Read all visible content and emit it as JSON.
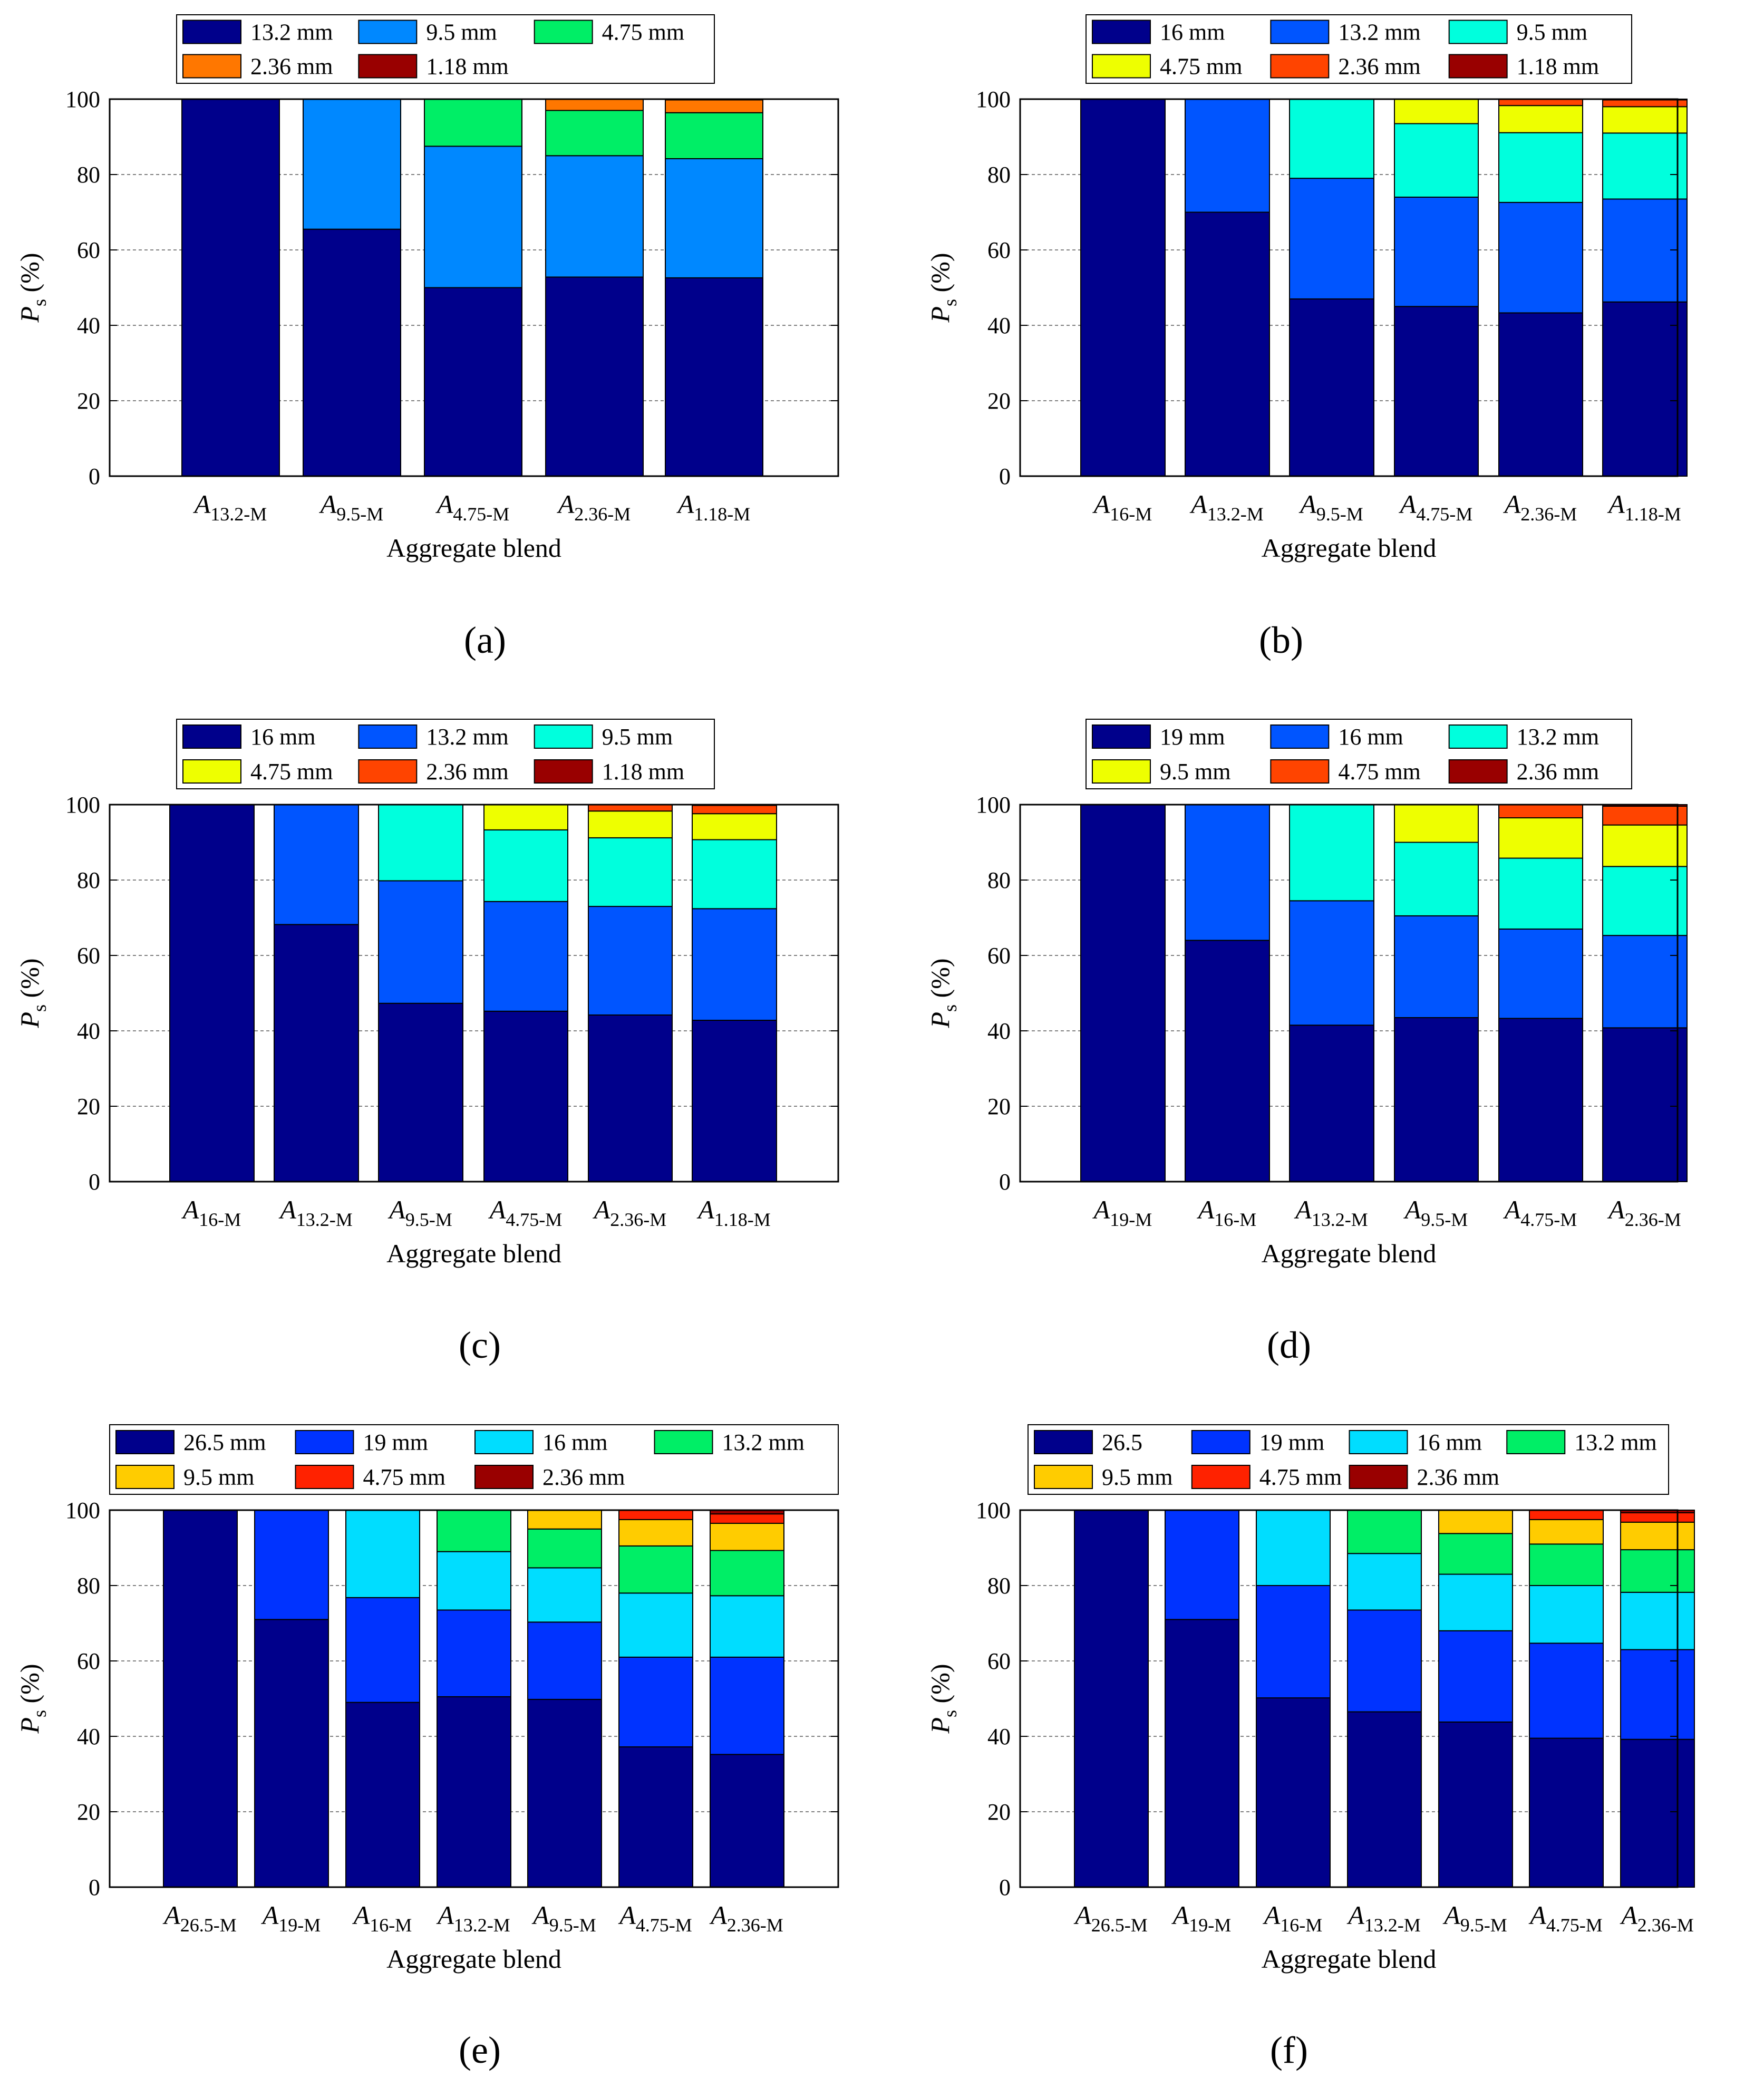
{
  "figure": {
    "ylabel_symbol": "P",
    "ylabel_subscript": "s",
    "ylabel_unit": "(%)"
  },
  "chart_data": [
    {
      "type": "bar",
      "stacked": true,
      "panel_label": "(a)",
      "xlabel": "Aggregate blend",
      "ylabel": "Ps (%)",
      "ylim": [
        0,
        100
      ],
      "yticks": [
        0,
        20,
        40,
        60,
        80,
        100
      ],
      "grid": "horizontal dashed",
      "legend_position": "top",
      "categories": [
        {
          "main": "A",
          "sub": "13.2-M"
        },
        {
          "main": "A",
          "sub": "9.5-M"
        },
        {
          "main": "A",
          "sub": "4.75-M"
        },
        {
          "main": "A",
          "sub": "2.36-M"
        },
        {
          "main": "A",
          "sub": "1.18-M"
        }
      ],
      "series": [
        {
          "name": "13.2 mm",
          "color": "#00008B",
          "values": [
            100,
            65.5,
            50,
            52.8,
            52.6
          ]
        },
        {
          "name": "9.5 mm",
          "color": "#0088FF",
          "values": [
            0,
            34.5,
            37.5,
            32.2,
            31.6
          ]
        },
        {
          "name": "4.75 mm",
          "color": "#00EE66",
          "values": [
            0,
            0,
            12.5,
            12,
            12.2
          ]
        },
        {
          "name": "2.36 mm",
          "color": "#FF7700",
          "values": [
            0,
            0,
            0,
            3,
            3.4
          ]
        },
        {
          "name": "1.18 mm",
          "color": "#990000",
          "values": [
            0,
            0,
            0,
            0,
            0.2
          ]
        }
      ]
    },
    {
      "type": "bar",
      "stacked": true,
      "panel_label": "(b)",
      "xlabel": "Aggregate blend",
      "ylabel": "Ps (%)",
      "ylim": [
        0,
        100
      ],
      "yticks": [
        0,
        20,
        40,
        60,
        80,
        100
      ],
      "grid": "horizontal dashed",
      "legend_position": "top",
      "categories": [
        {
          "main": "A",
          "sub": "16-M"
        },
        {
          "main": "A",
          "sub": "13.2-M"
        },
        {
          "main": "A",
          "sub": "9.5-M"
        },
        {
          "main": "A",
          "sub": "4.75-M"
        },
        {
          "main": "A",
          "sub": "2.36-M"
        },
        {
          "main": "A",
          "sub": "1.18-M"
        }
      ],
      "series": [
        {
          "name": "16 mm",
          "color": "#00008B",
          "values": [
            100,
            70,
            47,
            45,
            43.3,
            46.2
          ]
        },
        {
          "name": "13.2 mm",
          "color": "#0055FF",
          "values": [
            0,
            30,
            32,
            29,
            29.3,
            27.3
          ]
        },
        {
          "name": "9.5 mm",
          "color": "#00FFDD",
          "values": [
            0,
            0,
            21,
            19.5,
            18.5,
            17.5
          ]
        },
        {
          "name": "4.75 mm",
          "color": "#EEFF00",
          "values": [
            0,
            0,
            0,
            6.5,
            7.2,
            7
          ]
        },
        {
          "name": "2.36 mm",
          "color": "#FF4400",
          "values": [
            0,
            0,
            0,
            0,
            1.7,
            1.8
          ]
        },
        {
          "name": "1.18 mm",
          "color": "#990000",
          "values": [
            0,
            0,
            0,
            0,
            0,
            0.2
          ]
        }
      ]
    },
    {
      "type": "bar",
      "stacked": true,
      "panel_label": "(c)",
      "xlabel": "Aggregate blend",
      "ylabel": "Ps (%)",
      "ylim": [
        0,
        100
      ],
      "yticks": [
        0,
        20,
        40,
        60,
        80,
        100
      ],
      "grid": "horizontal dashed",
      "legend_position": "top",
      "categories": [
        {
          "main": "A",
          "sub": "16-M"
        },
        {
          "main": "A",
          "sub": "13.2-M"
        },
        {
          "main": "A",
          "sub": "9.5-M"
        },
        {
          "main": "A",
          "sub": "4.75-M"
        },
        {
          "main": "A",
          "sub": "2.36-M"
        },
        {
          "main": "A",
          "sub": "1.18-M"
        }
      ],
      "series": [
        {
          "name": "16 mm",
          "color": "#00008B",
          "values": [
            100,
            68.2,
            47.3,
            45.2,
            44.2,
            42.8
          ]
        },
        {
          "name": "13.2 mm",
          "color": "#0055FF",
          "values": [
            0,
            31.8,
            32.5,
            29.1,
            28.8,
            29.6
          ]
        },
        {
          "name": "9.5 mm",
          "color": "#00FFDD",
          "values": [
            0,
            0,
            20.2,
            19,
            18.2,
            18.3
          ]
        },
        {
          "name": "4.75 mm",
          "color": "#EEFF00",
          "values": [
            0,
            0,
            0,
            6.7,
            7.1,
            6.9
          ]
        },
        {
          "name": "2.36 mm",
          "color": "#FF4400",
          "values": [
            0,
            0,
            0,
            0,
            1.7,
            2.2
          ]
        },
        {
          "name": "1.18 mm",
          "color": "#990000",
          "values": [
            0,
            0,
            0,
            0,
            0,
            0.2
          ]
        }
      ]
    },
    {
      "type": "bar",
      "stacked": true,
      "panel_label": "(d)",
      "xlabel": "Aggregate blend",
      "ylabel": "Ps (%)",
      "ylim": [
        0,
        100
      ],
      "yticks": [
        0,
        20,
        40,
        60,
        80,
        100
      ],
      "grid": "horizontal dashed",
      "legend_position": "top",
      "categories": [
        {
          "main": "A",
          "sub": "19-M"
        },
        {
          "main": "A",
          "sub": "16-M"
        },
        {
          "main": "A",
          "sub": "13.2-M"
        },
        {
          "main": "A",
          "sub": "9.5-M"
        },
        {
          "main": "A",
          "sub": "4.75-M"
        },
        {
          "main": "A",
          "sub": "2.36-M"
        }
      ],
      "series": [
        {
          "name": "19 mm",
          "color": "#00008B",
          "values": [
            100,
            64,
            41.5,
            43.5,
            43.3,
            40.8
          ]
        },
        {
          "name": "16 mm",
          "color": "#0055FF",
          "values": [
            0,
            36,
            33,
            27,
            23.7,
            24.5
          ]
        },
        {
          "name": "13.2 mm",
          "color": "#00FFDD",
          "values": [
            0,
            0,
            25.5,
            19.5,
            18.8,
            18.3
          ]
        },
        {
          "name": "9.5 mm",
          "color": "#EEFF00",
          "values": [
            0,
            0,
            0,
            10,
            10.7,
            11
          ]
        },
        {
          "name": "4.75 mm",
          "color": "#FF4400",
          "values": [
            0,
            0,
            0,
            0,
            3.5,
            5
          ]
        },
        {
          "name": "2.36 mm",
          "color": "#990000",
          "values": [
            0,
            0,
            0,
            0,
            0,
            0.4
          ]
        }
      ]
    },
    {
      "type": "bar",
      "stacked": true,
      "panel_label": "(e)",
      "xlabel": "Aggregate blend",
      "ylabel": "Ps (%)",
      "ylim": [
        0,
        100
      ],
      "yticks": [
        0,
        20,
        40,
        60,
        80,
        100
      ],
      "grid": "horizontal dashed",
      "legend_position": "top",
      "categories": [
        {
          "main": "A",
          "sub": "26.5-M"
        },
        {
          "main": "A",
          "sub": "19-M"
        },
        {
          "main": "A",
          "sub": "16-M"
        },
        {
          "main": "A",
          "sub": "13.2-M"
        },
        {
          "main": "A",
          "sub": "9.5-M"
        },
        {
          "main": "A",
          "sub": "4.75-M"
        },
        {
          "main": "A",
          "sub": "2.36-M"
        }
      ],
      "series": [
        {
          "name": "26.5 mm",
          "color": "#00008B",
          "values": [
            100,
            71,
            49,
            50.5,
            49.8,
            37.2,
            35.2
          ]
        },
        {
          "name": "19 mm",
          "color": "#0033FF",
          "values": [
            0,
            29,
            27.8,
            23,
            20.5,
            23.8,
            25.8
          ]
        },
        {
          "name": "16 mm",
          "color": "#00DDFF",
          "values": [
            0,
            0,
            23.2,
            15.5,
            14.4,
            17,
            16.3
          ]
        },
        {
          "name": "13.2 mm",
          "color": "#00EE66",
          "values": [
            0,
            0,
            0,
            11,
            10.3,
            12.5,
            12
          ]
        },
        {
          "name": "9.5 mm",
          "color": "#FFCC00",
          "values": [
            0,
            0,
            0,
            0,
            5,
            7,
            7.2
          ]
        },
        {
          "name": "4.75 mm",
          "color": "#FF2200",
          "values": [
            0,
            0,
            0,
            0,
            0,
            2.5,
            2.5
          ]
        },
        {
          "name": "2.36 mm",
          "color": "#990000",
          "values": [
            0,
            0,
            0,
            0,
            0,
            0,
            1
          ]
        }
      ]
    },
    {
      "type": "bar",
      "stacked": true,
      "panel_label": "(f)",
      "xlabel": "Aggregate blend",
      "ylabel": "Ps (%)",
      "ylim": [
        0,
        100
      ],
      "yticks": [
        0,
        20,
        40,
        60,
        80,
        100
      ],
      "grid": "horizontal dashed",
      "legend_position": "top",
      "categories": [
        {
          "main": "A",
          "sub": "26.5-M"
        },
        {
          "main": "A",
          "sub": "19-M"
        },
        {
          "main": "A",
          "sub": "16-M"
        },
        {
          "main": "A",
          "sub": "13.2-M"
        },
        {
          "main": "A",
          "sub": "9.5-M"
        },
        {
          "main": "A",
          "sub": "4.75-M"
        },
        {
          "main": "A",
          "sub": "2.36-M"
        }
      ],
      "series": [
        {
          "name": "26.5",
          "color": "#00008B",
          "values": [
            100,
            71,
            50.2,
            46.5,
            43.8,
            39.5,
            39.2
          ]
        },
        {
          "name": "19 mm",
          "color": "#0033FF",
          "values": [
            0,
            29,
            29.8,
            27,
            24.2,
            25.2,
            23.8
          ]
        },
        {
          "name": "16 mm",
          "color": "#00DDFF",
          "values": [
            0,
            0,
            20,
            15,
            15,
            15.3,
            15.2
          ]
        },
        {
          "name": "13.2 mm",
          "color": "#00EE66",
          "values": [
            0,
            0,
            0,
            11.5,
            10.8,
            11,
            11.3
          ]
        },
        {
          "name": "9.5 mm",
          "color": "#FFCC00",
          "values": [
            0,
            0,
            0,
            0,
            6.2,
            6.5,
            7.3
          ]
        },
        {
          "name": "4.75 mm",
          "color": "#FF2200",
          "values": [
            0,
            0,
            0,
            0,
            0,
            2.5,
            2.5
          ]
        },
        {
          "name": "2.36 mm",
          "color": "#990000",
          "values": [
            0,
            0,
            0,
            0,
            0,
            0,
            0.7
          ]
        }
      ]
    }
  ]
}
